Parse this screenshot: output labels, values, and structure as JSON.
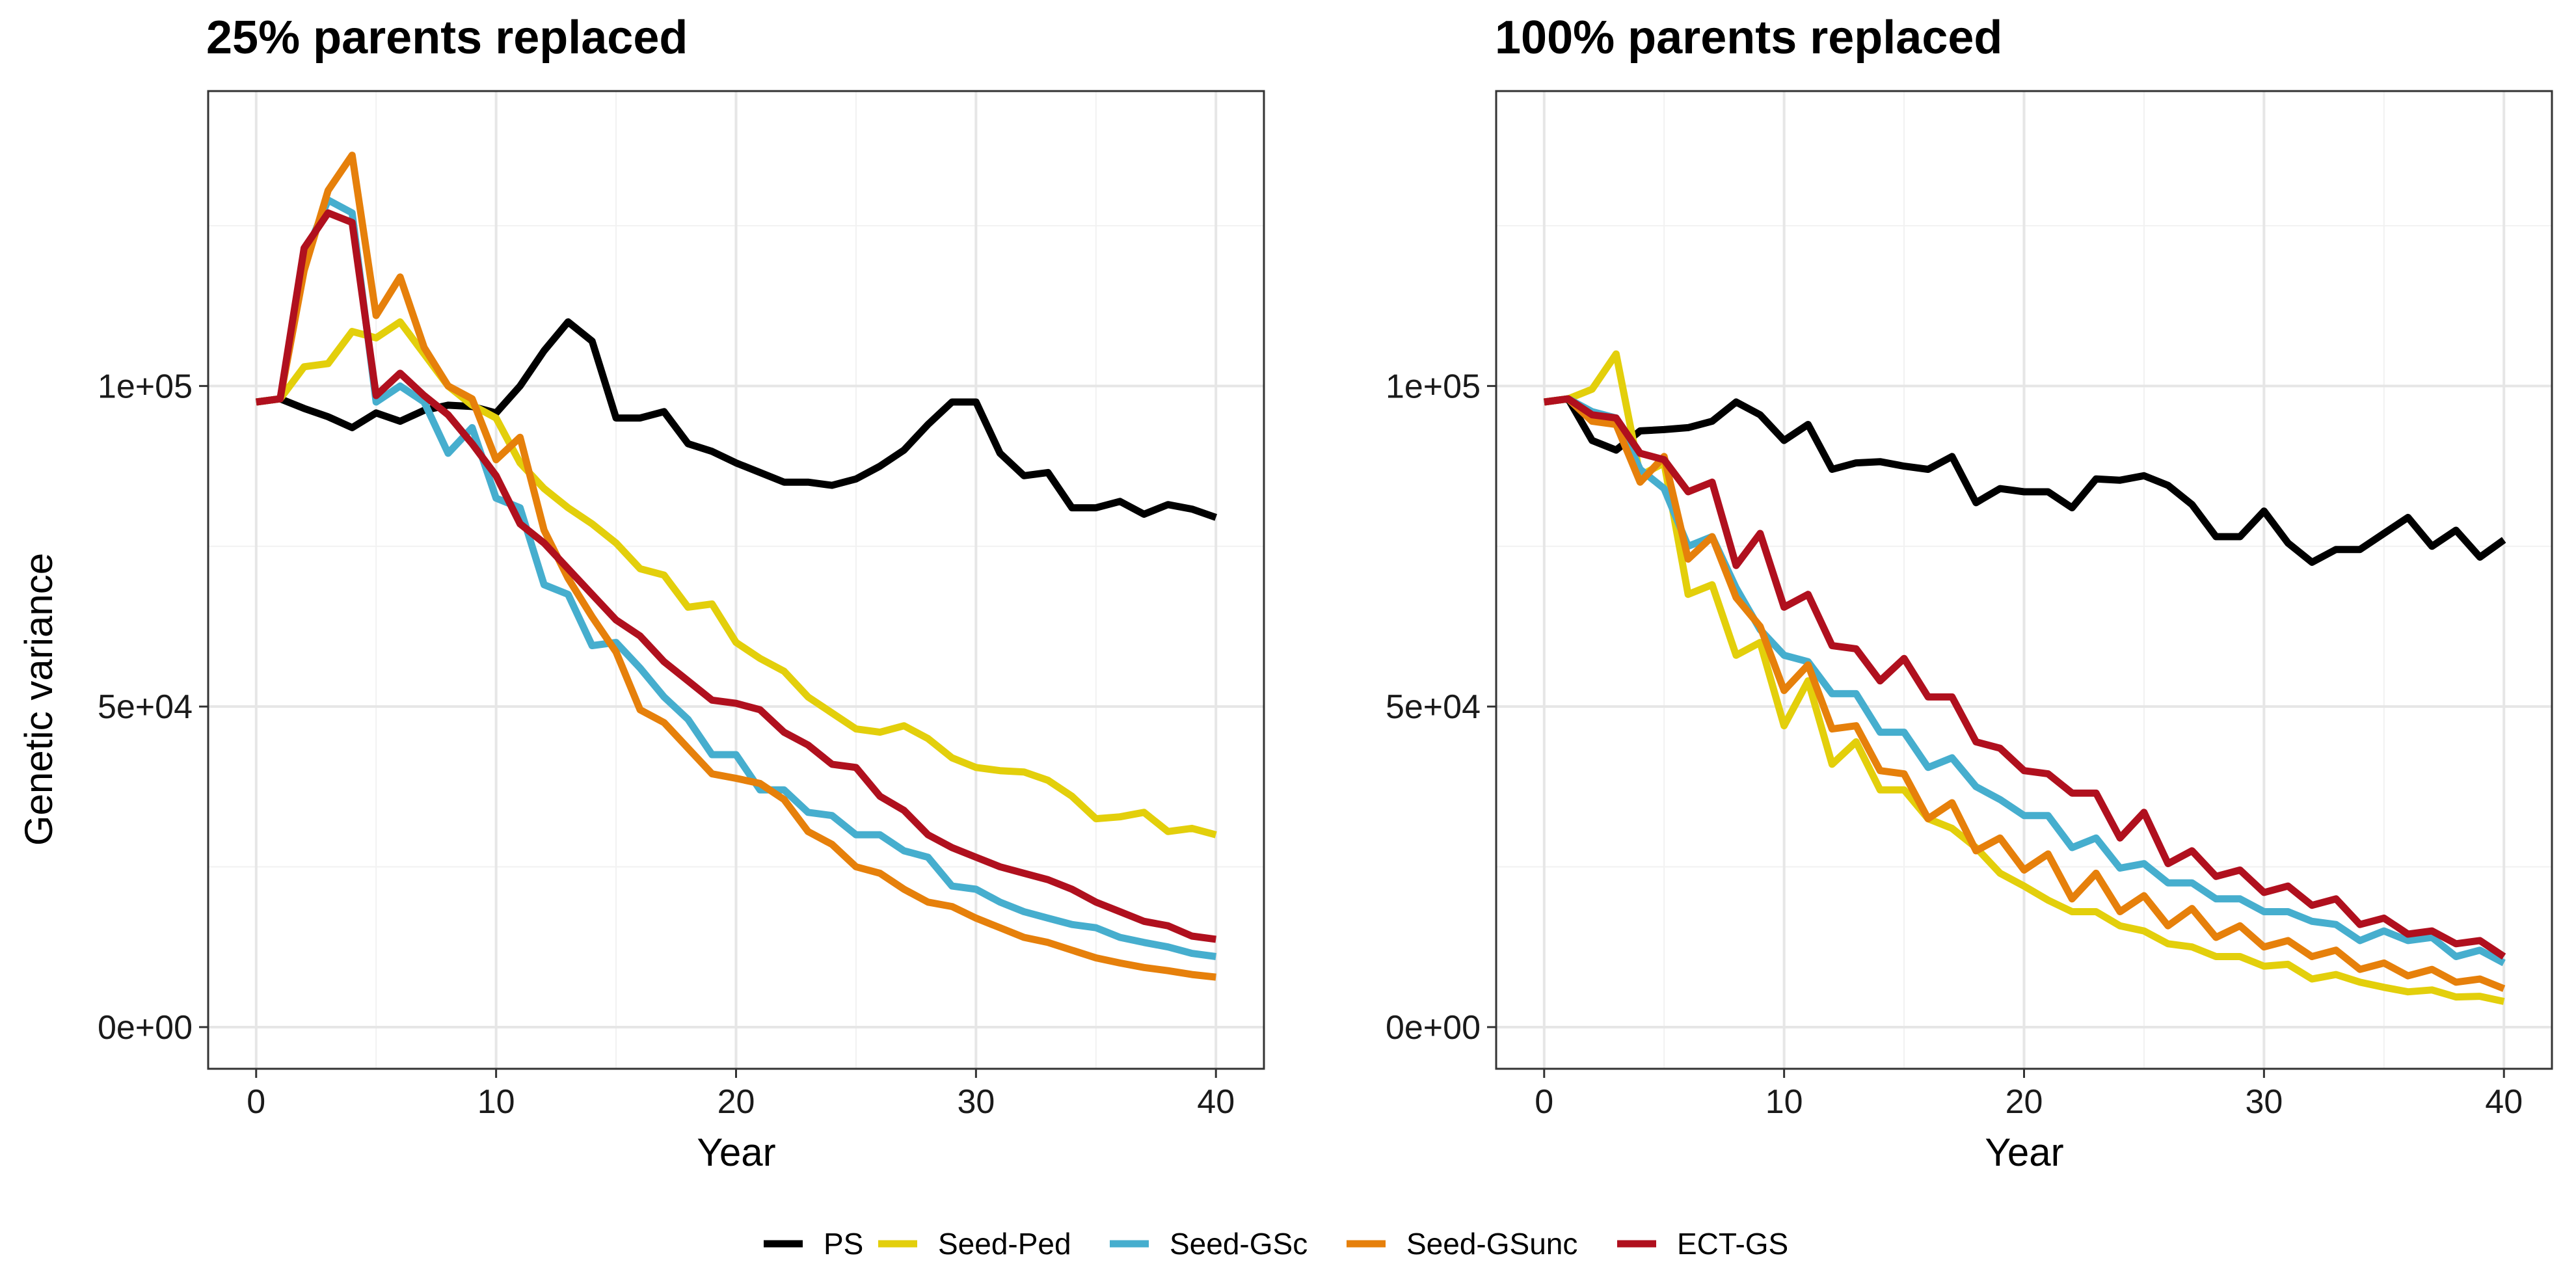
{
  "chart_data": [
    {
      "type": "line",
      "title": "25% parents replaced",
      "xlabel": "Year",
      "ylabel": "Genetic variance",
      "xlim": [
        -2,
        42
      ],
      "ylim": [
        -6500,
        146000
      ],
      "x_ticks": [
        0,
        10,
        20,
        30,
        40
      ],
      "x_tick_labels": [
        "0",
        "10",
        "20",
        "30",
        "40"
      ],
      "y_ticks": [
        0,
        50000,
        100000
      ],
      "y_tick_labels": [
        "0e+00",
        "5e+04",
        "1e+05"
      ],
      "grid": true,
      "series": [
        {
          "name": "PS",
          "color": "#000000",
          "values": [
            97500,
            98000,
            96500,
            95200,
            93500,
            95800,
            94500,
            96200,
            97000,
            96800,
            95800,
            100000,
            105500,
            110000,
            107000,
            95000,
            95000,
            96000,
            91000,
            89800,
            88000,
            86500,
            85000,
            85000,
            84500,
            85500,
            87500,
            90000,
            94000,
            97500,
            97500,
            89500,
            86000,
            86500,
            81000,
            81000,
            82000,
            80000,
            81500,
            80800,
            79500
          ]
        },
        {
          "name": "Seed-Ped",
          "color": "#E3CF0B",
          "values": [
            97500,
            98000,
            103000,
            103500,
            108500,
            107500,
            110000,
            105000,
            100000,
            97000,
            95000,
            88000,
            84000,
            81000,
            78500,
            75500,
            71500,
            70500,
            65500,
            66000,
            60000,
            57500,
            55500,
            51500,
            49000,
            46500,
            46000,
            47000,
            45000,
            42000,
            40500,
            40000,
            39800,
            38500,
            36000,
            32500,
            32800,
            33500,
            30500,
            31000,
            30000
          ]
        },
        {
          "name": "Seed-GSc",
          "color": "#46AECE",
          "values": [
            97500,
            98000,
            120000,
            129000,
            127000,
            97500,
            100000,
            97500,
            89500,
            93500,
            82500,
            81000,
            69000,
            67500,
            59500,
            60000,
            56000,
            51500,
            48000,
            42500,
            42500,
            37000,
            37000,
            33500,
            33000,
            30000,
            30000,
            27500,
            26500,
            22000,
            21500,
            19500,
            18000,
            17000,
            16000,
            15500,
            14000,
            13200,
            12500,
            11500,
            11000
          ]
        },
        {
          "name": "Seed-GSunc",
          "color": "#E6800B",
          "values": [
            97500,
            98000,
            118000,
            130500,
            136000,
            111000,
            117000,
            106000,
            100000,
            98000,
            88500,
            92000,
            77500,
            70000,
            64000,
            58500,
            49500,
            47500,
            43500,
            39500,
            38800,
            38000,
            35500,
            30500,
            28500,
            25000,
            24000,
            21500,
            19500,
            18800,
            17000,
            15500,
            14000,
            13200,
            12000,
            10800,
            10000,
            9300,
            8800,
            8200,
            7800
          ]
        },
        {
          "name": "ECT-GS",
          "color": "#B0101E",
          "values": [
            97500,
            98000,
            121500,
            127000,
            125500,
            98500,
            102000,
            98500,
            95500,
            91000,
            86000,
            78500,
            75500,
            71500,
            67500,
            63500,
            61000,
            57000,
            54000,
            51000,
            50500,
            49500,
            46000,
            44000,
            41000,
            40500,
            36000,
            33800,
            30000,
            28000,
            26500,
            25000,
            24000,
            23000,
            21500,
            19500,
            18000,
            16500,
            15800,
            14200,
            13700
          ]
        }
      ]
    },
    {
      "type": "line",
      "title": "100% parents replaced",
      "xlabel": "Year",
      "ylabel": "",
      "xlim": [
        -2,
        42
      ],
      "ylim": [
        -6500,
        146000
      ],
      "x_ticks": [
        0,
        10,
        20,
        30,
        40
      ],
      "x_tick_labels": [
        "0",
        "10",
        "20",
        "30",
        "40"
      ],
      "y_ticks": [
        0,
        50000,
        100000
      ],
      "y_tick_labels": [
        "0e+00",
        "5e+04",
        "1e+05"
      ],
      "grid": true,
      "series": [
        {
          "name": "PS",
          "color": "#000000",
          "values": [
            97500,
            98000,
            91500,
            90000,
            93000,
            93200,
            93500,
            94500,
            97500,
            95500,
            91500,
            94000,
            87000,
            88000,
            88200,
            87500,
            87000,
            89000,
            81800,
            84000,
            83500,
            83500,
            81000,
            85500,
            85300,
            86000,
            84500,
            81500,
            76500,
            76500,
            80500,
            75500,
            72500,
            74500,
            74500,
            77000,
            79500,
            75000,
            77500,
            73300,
            76000
          ]
        },
        {
          "name": "Seed-Ped",
          "color": "#E3CF0B",
          "values": [
            97500,
            98000,
            99500,
            105000,
            86000,
            88000,
            67500,
            69000,
            58000,
            60000,
            47000,
            54000,
            41000,
            44500,
            37000,
            37000,
            32500,
            31000,
            28000,
            24000,
            22000,
            19800,
            18000,
            18000,
            15800,
            15000,
            13000,
            12500,
            11000,
            11000,
            9500,
            9800,
            7500,
            8200,
            7000,
            6200,
            5500,
            5800,
            4700,
            4800,
            4000
          ]
        },
        {
          "name": "Seed-GSc",
          "color": "#46AECE",
          "values": [
            97500,
            98000,
            96000,
            95000,
            87000,
            84000,
            75000,
            76500,
            68500,
            62000,
            58000,
            57000,
            52000,
            52000,
            46000,
            46000,
            40500,
            42000,
            37500,
            35500,
            33000,
            33000,
            28000,
            29500,
            24800,
            25500,
            22500,
            22500,
            20000,
            20000,
            18000,
            18000,
            16500,
            16000,
            13500,
            15000,
            13500,
            14000,
            11000,
            12000,
            10000
          ]
        },
        {
          "name": "Seed-GSunc",
          "color": "#E6800B",
          "values": [
            97500,
            98000,
            94500,
            94000,
            85000,
            89000,
            73000,
            76500,
            67000,
            62500,
            52500,
            56500,
            46500,
            47000,
            40000,
            39500,
            32500,
            35000,
            27500,
            29500,
            24500,
            27000,
            20000,
            24000,
            18000,
            20500,
            15800,
            18500,
            14000,
            15800,
            12500,
            13500,
            11000,
            12000,
            9000,
            10000,
            8000,
            9000,
            7000,
            7500,
            6000
          ]
        },
        {
          "name": "ECT-GS",
          "color": "#B0101E",
          "values": [
            97500,
            98000,
            95500,
            95000,
            89500,
            88500,
            83500,
            85000,
            72000,
            77000,
            65500,
            67500,
            59500,
            59000,
            54000,
            57500,
            51500,
            51500,
            44500,
            43500,
            40000,
            39500,
            36500,
            36500,
            29500,
            33500,
            25500,
            27500,
            23500,
            24500,
            21000,
            22000,
            19000,
            20000,
            16000,
            17000,
            14500,
            15000,
            13000,
            13500,
            11000
          ]
        }
      ]
    }
  ],
  "legend": {
    "position": "bottom",
    "items": [
      {
        "label": "PS",
        "color": "#000000"
      },
      {
        "label": "Seed-Ped",
        "color": "#E3CF0B"
      },
      {
        "label": "Seed-GSc",
        "color": "#46AECE"
      },
      {
        "label": "Seed-GSunc",
        "color": "#E6800B"
      },
      {
        "label": "ECT-GS",
        "color": "#B0101E"
      }
    ]
  }
}
